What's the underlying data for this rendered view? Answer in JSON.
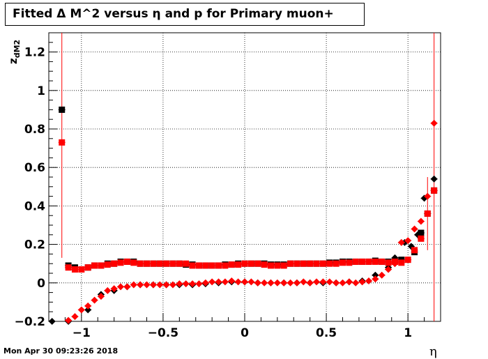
{
  "chart_data": {
    "type": "scatter",
    "title": "Fitted Δ M^2 versus η and p for Primary muon+",
    "xlabel": "η",
    "ylabel": "z",
    "ylabel_sub": "dM2",
    "xlim": [
      -1.2,
      1.2
    ],
    "ylim": [
      -0.2,
      1.3
    ],
    "grid": true,
    "x_ticks": [
      -1,
      -0.5,
      0,
      0.5,
      1
    ],
    "x_tick_labels": [
      "−1",
      "−0.5",
      "0",
      "0.5",
      "1"
    ],
    "y_ticks": [
      -0.2,
      0,
      0.2,
      0.4,
      0.6,
      0.8,
      1,
      1.2
    ],
    "y_tick_labels": [
      "−0.2",
      "0",
      "0.2",
      "0.4",
      "0.6",
      "0.8",
      "1",
      "1.2"
    ],
    "series": [
      {
        "marker": "square",
        "color": "#000000",
        "x": [
          -1.12,
          -1.08,
          -1.04,
          -0.96,
          -0.92,
          -0.88,
          -0.84,
          -0.8,
          -0.76,
          -0.72,
          -0.68,
          -0.64,
          -0.6,
          -0.56,
          -0.52,
          -0.48,
          -0.44,
          -0.4,
          -0.36,
          -0.32,
          -0.28,
          -0.24,
          -0.2,
          -0.16,
          -0.12,
          -0.08,
          -0.04,
          0.0,
          0.04,
          0.08,
          0.12,
          0.16,
          0.2,
          0.24,
          0.28,
          0.32,
          0.36,
          0.4,
          0.44,
          0.48,
          0.52,
          0.56,
          0.6,
          0.64,
          0.68,
          0.72,
          0.76,
          0.8,
          0.84,
          0.88,
          0.92,
          0.96,
          1.04,
          1.08,
          1.12,
          1.16
        ],
        "y": [
          0.9,
          0.09,
          0.08,
          0.08,
          0.09,
          0.09,
          0.1,
          0.1,
          0.11,
          0.11,
          0.11,
          0.1,
          0.1,
          0.1,
          0.1,
          0.1,
          0.1,
          0.1,
          0.095,
          0.095,
          0.09,
          0.09,
          0.09,
          0.09,
          0.095,
          0.095,
          0.1,
          0.1,
          0.1,
          0.1,
          0.1,
          0.095,
          0.095,
          0.095,
          0.1,
          0.1,
          0.1,
          0.1,
          0.1,
          0.1,
          0.105,
          0.105,
          0.11,
          0.11,
          0.11,
          0.11,
          0.11,
          0.115,
          0.11,
          0.11,
          0.11,
          0.12,
          0.16,
          0.26,
          0.36,
          0.48
        ]
      },
      {
        "marker": "diamond",
        "color": "#000000",
        "x": [
          -1.18,
          -1.08,
          -0.96,
          -0.88,
          -0.8,
          -0.72,
          -0.64,
          -0.56,
          -0.48,
          -0.4,
          -0.32,
          -0.24,
          -0.16,
          -0.08,
          0.0,
          0.08,
          0.16,
          0.24,
          0.32,
          0.4,
          0.48,
          0.56,
          0.64,
          0.72,
          0.8,
          0.88,
          0.92,
          0.98,
          1.02,
          1.06,
          1.1,
          1.16
        ],
        "y": [
          -0.2,
          -0.2,
          -0.14,
          -0.06,
          -0.04,
          -0.02,
          -0.01,
          -0.01,
          -0.01,
          -0.01,
          -0.01,
          -0.005,
          0.0,
          0.005,
          0.005,
          0.0,
          0.0,
          0.0,
          0.0,
          0.0,
          0.0,
          0.0,
          0.005,
          0.01,
          0.04,
          0.08,
          0.13,
          0.21,
          0.19,
          0.25,
          0.44,
          0.54
        ]
      },
      {
        "marker": "square",
        "color": "#ff0000",
        "x": [
          -1.12,
          -1.08,
          -1.04,
          -1.0,
          -0.96,
          -0.92,
          -0.88,
          -0.84,
          -0.8,
          -0.76,
          -0.72,
          -0.68,
          -0.64,
          -0.6,
          -0.56,
          -0.52,
          -0.48,
          -0.44,
          -0.4,
          -0.36,
          -0.32,
          -0.28,
          -0.24,
          -0.2,
          -0.16,
          -0.12,
          -0.08,
          -0.04,
          0.0,
          0.04,
          0.08,
          0.12,
          0.16,
          0.2,
          0.24,
          0.28,
          0.32,
          0.36,
          0.4,
          0.44,
          0.48,
          0.52,
          0.56,
          0.6,
          0.64,
          0.68,
          0.72,
          0.76,
          0.8,
          0.84,
          0.88,
          0.92,
          0.96,
          1.0,
          1.04,
          1.08,
          1.12,
          1.16
        ],
        "y": [
          0.73,
          0.08,
          0.07,
          0.07,
          0.08,
          0.09,
          0.09,
          0.095,
          0.1,
          0.105,
          0.11,
          0.105,
          0.1,
          0.1,
          0.1,
          0.1,
          0.1,
          0.1,
          0.1,
          0.1,
          0.09,
          0.09,
          0.09,
          0.09,
          0.09,
          0.09,
          0.095,
          0.095,
          0.1,
          0.1,
          0.1,
          0.095,
          0.09,
          0.09,
          0.09,
          0.1,
          0.1,
          0.1,
          0.1,
          0.1,
          0.1,
          0.1,
          0.1,
          0.105,
          0.105,
          0.11,
          0.11,
          0.11,
          0.11,
          0.11,
          0.105,
          0.11,
          0.105,
          0.12,
          0.17,
          0.23,
          0.36,
          0.48
        ]
      },
      {
        "marker": "diamond",
        "color": "#ff0000",
        "x": [
          -1.08,
          -1.04,
          -1.0,
          -0.96,
          -0.92,
          -0.88,
          -0.84,
          -0.8,
          -0.76,
          -0.72,
          -0.68,
          -0.64,
          -0.6,
          -0.56,
          -0.52,
          -0.48,
          -0.44,
          -0.4,
          -0.36,
          -0.32,
          -0.28,
          -0.24,
          -0.2,
          -0.16,
          -0.12,
          -0.08,
          -0.04,
          0.0,
          0.04,
          0.08,
          0.12,
          0.16,
          0.2,
          0.24,
          0.28,
          0.32,
          0.36,
          0.4,
          0.44,
          0.48,
          0.52,
          0.56,
          0.6,
          0.64,
          0.68,
          0.72,
          0.76,
          0.8,
          0.84,
          0.88,
          0.92,
          0.96,
          1.0,
          1.04,
          1.08,
          1.12,
          1.16
        ],
        "y": [
          -0.195,
          -0.175,
          -0.14,
          -0.12,
          -0.09,
          -0.07,
          -0.04,
          -0.03,
          -0.02,
          -0.02,
          -0.01,
          -0.01,
          -0.01,
          -0.01,
          -0.01,
          -0.01,
          -0.01,
          -0.005,
          -0.005,
          -0.005,
          -0.005,
          0.0,
          0.005,
          0.005,
          0.005,
          0.01,
          0.005,
          0.005,
          0.005,
          0.0,
          0.0,
          0.0,
          0.0,
          0.0,
          0.0,
          0.0,
          0.005,
          0.0,
          0.005,
          0.005,
          0.005,
          0.0,
          0.0,
          0.005,
          0.0,
          0.005,
          0.01,
          0.02,
          0.04,
          0.07,
          0.1,
          0.21,
          0.22,
          0.28,
          0.32,
          0.45,
          0.83
        ]
      }
    ],
    "error_bars": [
      {
        "x": -1.12,
        "ylow": 0.13,
        "yhigh": 1.3,
        "color": "#ff0000"
      },
      {
        "x": 1.12,
        "ylow": 0.17,
        "yhigh": 0.55,
        "color": "#ff0000"
      },
      {
        "x": 1.16,
        "ylow": -0.2,
        "yhigh": 1.3,
        "color": "#ff0000"
      }
    ]
  },
  "footer": {
    "timestamp": "Mon Apr 30 09:23:26 2018"
  }
}
